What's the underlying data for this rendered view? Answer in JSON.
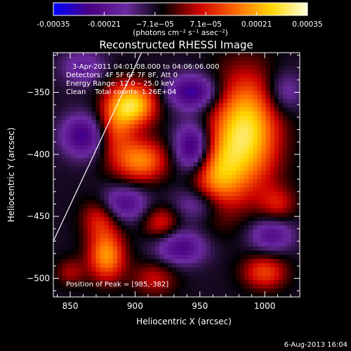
{
  "colorbar": {
    "ticks": [
      "-0.00035",
      "-0.00021",
      "−7.1e−05",
      "7.1e−05",
      "0.00021",
      "0.00035"
    ],
    "unit_label": "(photons cm⁻² s⁻¹ asec⁻²)",
    "min": -0.00035,
    "max": 0.00035,
    "colors": [
      "#0000ff",
      "#4b0082",
      "#6b2ba0",
      "#000000",
      "#cc0000",
      "#ff6600",
      "#ffd700",
      "#ffffe0"
    ]
  },
  "chart_data": {
    "type": "heatmap",
    "title": "Reconstructed RHESSI Image",
    "xlabel": "Heliocentric X (arcsec)",
    "ylabel": "Heliocentric Y (arcsec)",
    "xlim": [
      837,
      1027
    ],
    "ylim": [
      -515,
      -318
    ],
    "x_ticks": [
      850,
      900,
      950,
      1000
    ],
    "y_ticks": [
      -350,
      -400,
      -450,
      -500
    ],
    "annotations": {
      "time_range": "3-Apr-2011 04:01:08.000 to 04:06:06.000",
      "detectors": "Detectors: 4F 5F 6F 7F 8F, Att 0",
      "energy_range": "Energy Range: 12.0 – 25.0 keV",
      "clean": "Clean    Total counts: 1.26E+04",
      "peak_position": "Position of Peak = [985,-382]"
    },
    "peak": {
      "x": 985,
      "y": -382
    },
    "limb_line": [
      [
        837,
        -470
      ],
      [
        905,
        -318
      ]
    ],
    "sources": [
      {
        "x": 985,
        "y": -382,
        "amp": 0.00035,
        "sx": 18,
        "sy": 32
      },
      {
        "x": 962,
        "y": -420,
        "amp": 0.00022,
        "sx": 14,
        "sy": 22
      },
      {
        "x": 900,
        "y": -360,
        "amp": 0.0003,
        "sx": 12,
        "sy": 12
      },
      {
        "x": 905,
        "y": -405,
        "amp": 0.00024,
        "sx": 14,
        "sy": 12
      },
      {
        "x": 885,
        "y": -375,
        "amp": 0.00018,
        "sx": 10,
        "sy": 20
      },
      {
        "x": 873,
        "y": -450,
        "amp": 0.00016,
        "sx": 10,
        "sy": 12
      },
      {
        "x": 878,
        "y": -482,
        "amp": 0.00026,
        "sx": 10,
        "sy": 14
      },
      {
        "x": 920,
        "y": -455,
        "amp": 0.00015,
        "sx": 10,
        "sy": 10
      },
      {
        "x": 915,
        "y": -500,
        "amp": 0.00012,
        "sx": 12,
        "sy": 10
      },
      {
        "x": 1000,
        "y": -495,
        "amp": 0.00018,
        "sx": 12,
        "sy": 10
      },
      {
        "x": 1010,
        "y": -440,
        "amp": 0.00012,
        "sx": 10,
        "sy": 10
      },
      {
        "x": 850,
        "y": -495,
        "amp": 0.0001,
        "sx": 8,
        "sy": 8
      },
      {
        "x": 860,
        "y": -385,
        "amp": -0.0002,
        "sx": 12,
        "sy": 12
      },
      {
        "x": 945,
        "y": -395,
        "amp": -0.00026,
        "sx": 10,
        "sy": 14
      },
      {
        "x": 945,
        "y": -350,
        "amp": -0.00022,
        "sx": 14,
        "sy": 10
      },
      {
        "x": 950,
        "y": -440,
        "amp": -0.00015,
        "sx": 14,
        "sy": 10
      },
      {
        "x": 890,
        "y": -440,
        "amp": -0.00018,
        "sx": 14,
        "sy": 10
      },
      {
        "x": 1005,
        "y": -465,
        "amp": -0.00016,
        "sx": 12,
        "sy": 10
      },
      {
        "x": 935,
        "y": -475,
        "amp": -0.00018,
        "sx": 14,
        "sy": 10
      },
      {
        "x": 1015,
        "y": -350,
        "amp": -0.00012,
        "sx": 10,
        "sy": 12
      },
      {
        "x": 860,
        "y": -330,
        "amp": -0.00012,
        "sx": 12,
        "sy": 10
      }
    ]
  },
  "footer": {
    "timestamp": "6-Aug-2013 16:04"
  }
}
